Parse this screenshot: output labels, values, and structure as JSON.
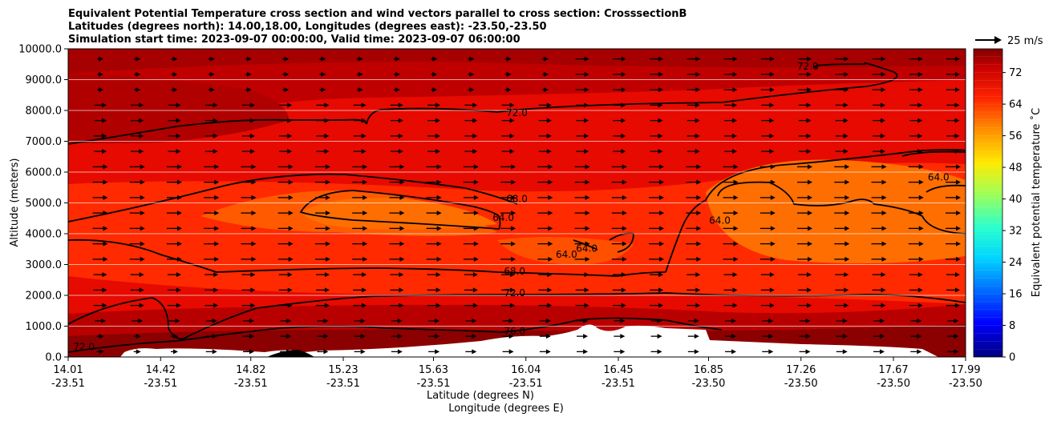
{
  "chart_data": {
    "type": "filled-contour-cross-section",
    "title_lines": [
      "Equivalent Potential Temperature cross section and wind vectors parallel to cross section: CrosssectionB",
      "Latitudes (degrees north): 14.00,18.00, Longitudes (degrees east): -23.50,-23.50",
      "Simulation start time: 2023-09-07 00:00:00, Valid time: 2023-09-07 06:00:00"
    ],
    "xlabel_lines": [
      "Latitude (degrees N)",
      "Longitude (degrees E)"
    ],
    "ylabel": "Altitude (meters)",
    "x_ticks": [
      {
        "lat": "14.01",
        "lon": "-23.51"
      },
      {
        "lat": "14.42",
        "lon": "-23.51"
      },
      {
        "lat": "14.82",
        "lon": "-23.51"
      },
      {
        "lat": "15.23",
        "lon": "-23.51"
      },
      {
        "lat": "15.63",
        "lon": "-23.51"
      },
      {
        "lat": "16.04",
        "lon": "-23.51"
      },
      {
        "lat": "16.45",
        "lon": "-23.51"
      },
      {
        "lat": "16.85",
        "lon": "-23.50"
      },
      {
        "lat": "17.26",
        "lon": "-23.50"
      },
      {
        "lat": "17.67",
        "lon": "-23.50"
      },
      {
        "lat": "17.99",
        "lon": "-23.50"
      }
    ],
    "x_range": [
      14.01,
      17.99
    ],
    "y_ticks": [
      "0.0",
      "1000.0",
      "2000.0",
      "3000.0",
      "4000.0",
      "5000.0",
      "6000.0",
      "7000.0",
      "8000.0",
      "9000.0",
      "10000.0"
    ],
    "y_range": [
      0,
      10000
    ],
    "colorbar": {
      "label": "Equivalent potential temperature $^\\circ$C",
      "label_display": "Equivalent potential temperature ˚C",
      "ticks": [
        "0",
        "8",
        "16",
        "24",
        "32",
        "40",
        "48",
        "56",
        "64",
        "72"
      ],
      "range": [
        0,
        78
      ]
    },
    "quiver_key": {
      "label": "25 m/s",
      "speed": 25
    },
    "contour_labels": [
      {
        "text": "72.0",
        "lat": 16.0,
        "alt": 7900
      },
      {
        "text": "68.0",
        "lat": 16.0,
        "alt": 5100
      },
      {
        "text": "64.0",
        "lat": 15.94,
        "alt": 4500
      },
      {
        "text": "68.0",
        "lat": 15.99,
        "alt": 2750
      },
      {
        "text": "72.0",
        "lat": 15.99,
        "alt": 2050
      },
      {
        "text": "76.0",
        "lat": 15.99,
        "alt": 800
      },
      {
        "text": "64.0",
        "lat": 16.22,
        "alt": 3300
      },
      {
        "text": "64.0",
        "lat": 16.31,
        "alt": 3500
      },
      {
        "text": "64.0",
        "lat": 16.9,
        "alt": 4400
      },
      {
        "text": "64.0",
        "lat": 17.87,
        "alt": 5800
      },
      {
        "text": "72.0",
        "lat": 17.29,
        "alt": 9400
      },
      {
        "text": "72.0",
        "lat": 14.08,
        "alt": 300
      }
    ]
  }
}
